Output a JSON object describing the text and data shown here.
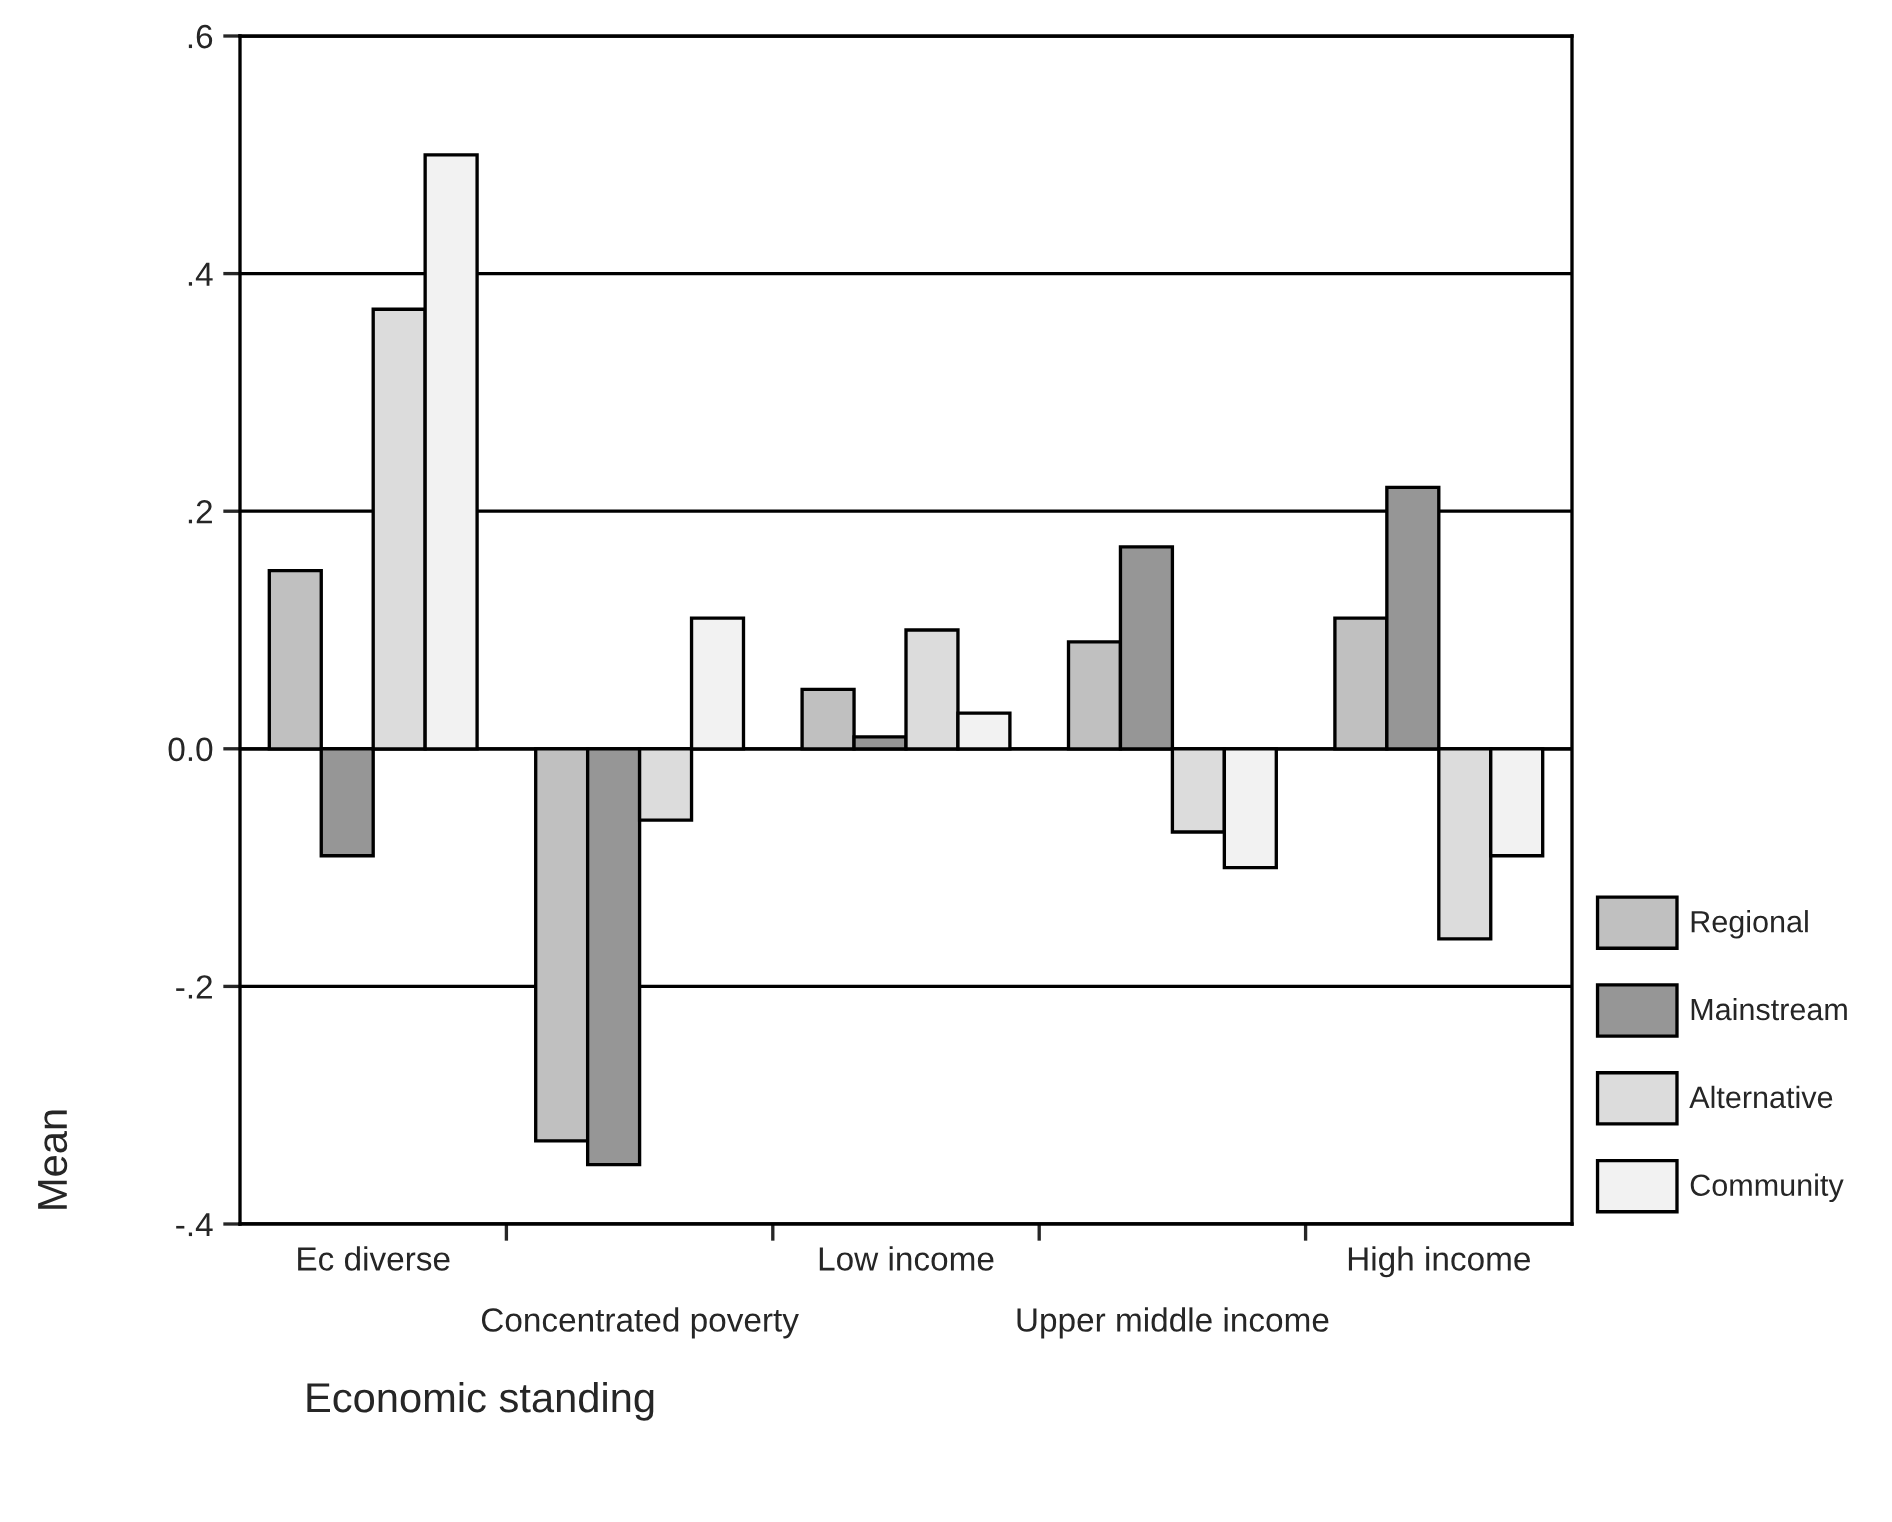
{
  "chart_data": {
    "type": "bar",
    "xlabel": "Economic standing",
    "ylabel": "Mean",
    "categories": [
      "Ec diverse",
      "Concentrated poverty",
      "Low income",
      "Upper middle income",
      "High income"
    ],
    "series": [
      {
        "name": "Regional",
        "color": "#c0c0c0",
        "values": [
          0.15,
          -0.33,
          0.05,
          0.09,
          0.11
        ]
      },
      {
        "name": "Mainstream",
        "color": "#969696",
        "values": [
          -0.09,
          -0.35,
          0.01,
          0.17,
          0.22
        ]
      },
      {
        "name": "Alternative",
        "color": "#dcdcdc",
        "values": [
          0.37,
          -0.06,
          0.1,
          -0.07,
          -0.16
        ]
      },
      {
        "name": "Community",
        "color": "#f2f2f2",
        "values": [
          0.5,
          0.11,
          0.03,
          -0.1,
          -0.09
        ]
      }
    ],
    "ylim": [
      -0.4,
      0.6
    ],
    "yticks": [
      {
        "value": -0.4,
        "label": "-.4"
      },
      {
        "value": -0.2,
        "label": "-.2"
      },
      {
        "value": 0,
        "label": "0.0"
      },
      {
        "value": 0.2,
        "label": ".2"
      },
      {
        "value": 0.4,
        "label": ".4"
      },
      {
        "value": 0.6,
        "label": ".6"
      }
    ],
    "grid": "y",
    "legend": "right"
  }
}
